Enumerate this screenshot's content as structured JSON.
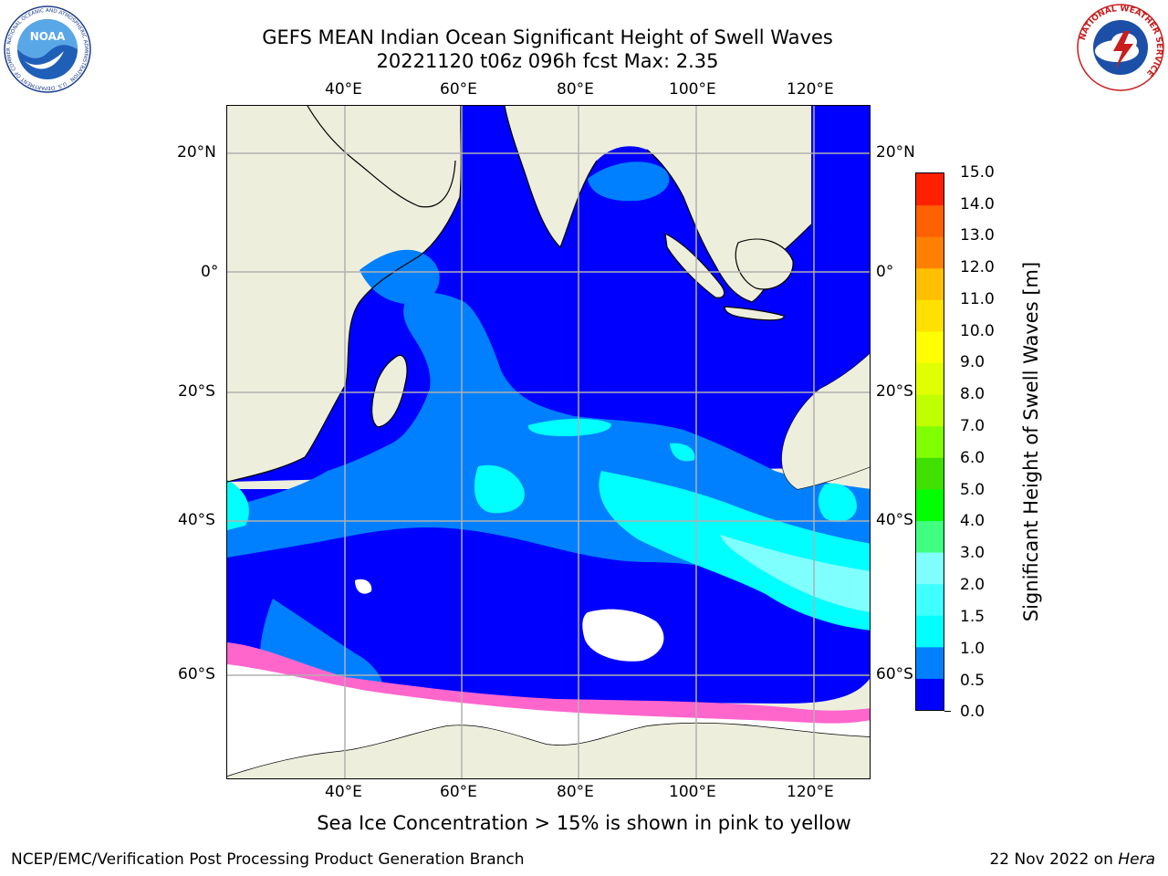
{
  "title": {
    "line1": "GEFS MEAN Indian Ocean Significant Height of Swell Waves",
    "line2": "20221120 t06z 096h fcst   Max: 2.35"
  },
  "map": {
    "lon_labels": [
      "40°E",
      "60°E",
      "80°E",
      "100°E",
      "120°E"
    ],
    "lat_labels": [
      "20°N",
      "0°",
      "20°S",
      "40°S",
      "60°S"
    ],
    "colors": {
      "land": "#eeeedd",
      "ocean_low": "#0000ff",
      "ocean_mid": "#0080ff",
      "swell_high": "#00ffff",
      "swell_peak": "#80ffff",
      "sea_ice": "#ff66cc",
      "grid": "#b0b0b0"
    }
  },
  "colorbar": {
    "label": "Significant Height of Swell Waves [m]",
    "ticks": [
      "0.0",
      "0.5",
      "1.0",
      "1.5",
      "2.0",
      "3.0",
      "4.0",
      "5.0",
      "6.0",
      "7.0",
      "8.0",
      "9.0",
      "10.0",
      "11.0",
      "12.0",
      "13.0",
      "14.0",
      "15.0"
    ],
    "colors": [
      "#0000ff",
      "#0080ff",
      "#00ffff",
      "#40ffff",
      "#80ffff",
      "#40ff80",
      "#00ff00",
      "#40e000",
      "#80ff00",
      "#c0ff00",
      "#e0ff00",
      "#ffff00",
      "#ffe000",
      "#ffc000",
      "#ff8000",
      "#ff6000",
      "#ff2000"
    ]
  },
  "logos": {
    "noaa": "NOAA",
    "noaa_ring": "NATIONAL OCEANIC AND ATMOSPHERIC ADMINISTRATION · U.S. DEPARTMENT OF COMMERCE",
    "nws_ring": "NATIONAL WEATHER SERVICE"
  },
  "footnote": "Sea Ice Concentration > 15% is shown in pink to yellow",
  "credit": "NCEP/EMC/Verification Post Processing Product Generation Branch",
  "date": {
    "text": "22 Nov 2022 on",
    "machine": "Hera"
  }
}
